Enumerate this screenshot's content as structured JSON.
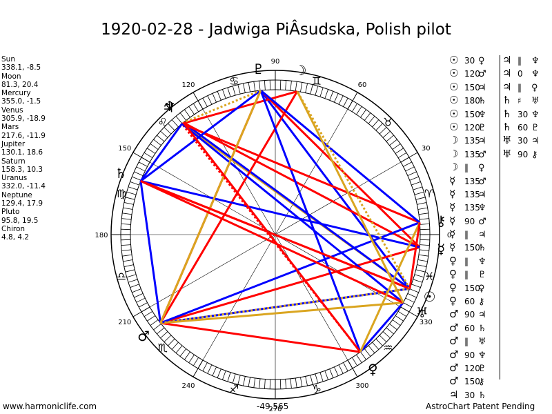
{
  "title": "1920-02-28 - Jadwiga PiÂsudska, Polish pilot",
  "positions": [
    {
      "name": "Sun",
      "value": "338.1, -8.5"
    },
    {
      "name": "Moon",
      "value": "81.3, 20.4"
    },
    {
      "name": "Mercury",
      "value": "355.0, -1.5"
    },
    {
      "name": "Venus",
      "value": "305.9, -18.9"
    },
    {
      "name": "Mars",
      "value": "217.6, -11.9"
    },
    {
      "name": "Jupiter",
      "value": "130.1, 18.6"
    },
    {
      "name": "Saturn",
      "value": "158.3, 10.3"
    },
    {
      "name": "Uranus",
      "value": "332.0, -11.4"
    },
    {
      "name": "Neptune",
      "value": "129.4, 17.9"
    },
    {
      "name": "Pluto",
      "value": "95.8, 19.5"
    },
    {
      "name": "Chiron",
      "value": "4.8, 4.2"
    }
  ],
  "aspects": [
    [
      "☉",
      "30",
      "♀"
    ],
    [
      "☉",
      "120",
      "♂"
    ],
    [
      "☉",
      "150",
      "♃"
    ],
    [
      "☉",
      "180",
      "♄"
    ],
    [
      "☉",
      "150",
      "♆"
    ],
    [
      "☉",
      "120",
      "♇"
    ],
    [
      "☽",
      "135",
      "♃"
    ],
    [
      "☽",
      "135",
      "♂"
    ],
    [
      "☽",
      "‖",
      "♀"
    ],
    [
      "☿",
      "135",
      "♂"
    ],
    [
      "☿",
      "135",
      "♃"
    ],
    [
      "☿",
      "135",
      "♆"
    ],
    [
      "☿",
      "90",
      "♂"
    ],
    [
      "☿",
      "‖",
      "♃"
    ],
    [
      "☿",
      "150",
      "♄"
    ],
    [
      "♀",
      "‖",
      "♆"
    ],
    [
      "♀",
      "‖",
      "♇"
    ],
    [
      "♀",
      "150",
      "♀"
    ],
    [
      "♀",
      "60",
      "⚷"
    ],
    [
      "♂",
      "90",
      "♃"
    ],
    [
      "♂",
      "60",
      "♄"
    ],
    [
      "♂",
      "‖",
      "♅"
    ],
    [
      "♂",
      "90",
      "♆"
    ],
    [
      "♂",
      "120",
      "♇"
    ],
    [
      "♂",
      "150",
      "⚷"
    ],
    [
      "♃",
      "30",
      "♄"
    ],
    [
      "♃",
      "‖",
      "♆"
    ],
    [
      "♃",
      "0",
      "♆"
    ],
    [
      "♃",
      "‖",
      "♀"
    ],
    [
      "♄",
      "♯",
      "♅"
    ],
    [
      "♄",
      "30",
      "♆"
    ],
    [
      "♄",
      "60",
      "♇"
    ],
    [
      "♅",
      "30",
      "♃"
    ],
    [
      "♅",
      "90",
      "⚷"
    ]
  ],
  "footer": {
    "left": "www.harmoniclife.com",
    "middle": "-49,565",
    "right": "AstroChart Patent Pending"
  },
  "chart_data": {
    "type": "wheel",
    "degree_labels": [
      "0",
      "30",
      "60",
      "90",
      "120",
      "150",
      "180",
      "210",
      "240",
      "270",
      "300",
      "330"
    ],
    "planets": [
      {
        "name": "Sun",
        "symbol": "☉",
        "lon": 338.1,
        "color": "#000000"
      },
      {
        "name": "Moon",
        "symbol": "☽",
        "lon": 81.3,
        "color": "#000000"
      },
      {
        "name": "Mercury",
        "symbol": "☿",
        "lon": 355.0,
        "color": "#000000"
      },
      {
        "name": "Venus",
        "symbol": "♀",
        "lon": 305.9,
        "color": "#000000"
      },
      {
        "name": "Mars",
        "symbol": "♂",
        "lon": 217.6,
        "color": "#000000"
      },
      {
        "name": "Jupiter",
        "symbol": "♃",
        "lon": 130.1,
        "color": "#000000"
      },
      {
        "name": "Saturn",
        "symbol": "♄",
        "lon": 158.3,
        "color": "#000000"
      },
      {
        "name": "Uranus",
        "symbol": "♅",
        "lon": 332.0,
        "color": "#000000"
      },
      {
        "name": "Neptune",
        "symbol": "♆",
        "lon": 129.4,
        "color": "#000000"
      },
      {
        "name": "Pluto",
        "symbol": "♇",
        "lon": 95.8,
        "color": "#000000"
      },
      {
        "name": "Chiron",
        "symbol": "⚷",
        "lon": 4.8,
        "color": "#000000"
      }
    ],
    "signs": [
      "♈",
      "♉",
      "♊",
      "♋",
      "♌",
      "♍",
      "♎",
      "♏",
      "♐",
      "♑",
      "♒",
      "♓"
    ],
    "aspect_colors": {
      "hard": "#ff0000",
      "soft": "#0000ff",
      "minor": "#daa520"
    },
    "aspect_lines": [
      {
        "a": 338.1,
        "b": 217.6,
        "color": "#0000ff",
        "style": "solid"
      },
      {
        "a": 338.1,
        "b": 130.1,
        "color": "#daa520",
        "style": "solid"
      },
      {
        "a": 338.1,
        "b": 158.3,
        "color": "#ff0000",
        "style": "solid"
      },
      {
        "a": 338.1,
        "b": 129.4,
        "color": "#0000ff",
        "style": "solid"
      },
      {
        "a": 338.1,
        "b": 95.8,
        "color": "#0000ff",
        "style": "solid"
      },
      {
        "a": 81.3,
        "b": 217.6,
        "color": "#ff0000",
        "style": "solid"
      },
      {
        "a": 81.3,
        "b": 130.1,
        "color": "#ff0000",
        "style": "solid"
      },
      {
        "a": 355.0,
        "b": 217.6,
        "color": "#ff0000",
        "style": "solid"
      },
      {
        "a": 355.0,
        "b": 129.4,
        "color": "#ff0000",
        "style": "solid"
      },
      {
        "a": 355.0,
        "b": 95.8,
        "color": "#ff0000",
        "style": "solid"
      },
      {
        "a": 355.0,
        "b": 158.3,
        "color": "#0000ff",
        "style": "solid"
      },
      {
        "a": 305.9,
        "b": 217.6,
        "color": "#ff0000",
        "style": "solid"
      },
      {
        "a": 305.9,
        "b": 95.8,
        "color": "#0000ff",
        "style": "solid"
      },
      {
        "a": 305.9,
        "b": 130.1,
        "color": "#ff0000",
        "style": "dotted"
      },
      {
        "a": 305.9,
        "b": 332.0,
        "color": "#0000ff",
        "style": "solid"
      },
      {
        "a": 217.6,
        "b": 158.3,
        "color": "#0000ff",
        "style": "solid"
      },
      {
        "a": 217.6,
        "b": 95.8,
        "color": "#ff0000",
        "style": "solid"
      },
      {
        "a": 217.6,
        "b": 332.0,
        "color": "#daa520",
        "style": "solid"
      },
      {
        "a": 217.6,
        "b": 4.8,
        "color": "#0000ff",
        "style": "solid"
      },
      {
        "a": 217.6,
        "b": 338.1,
        "color": "#daa520",
        "style": "dotted"
      },
      {
        "a": 130.1,
        "b": 158.3,
        "color": "#0000ff",
        "style": "solid"
      },
      {
        "a": 130.1,
        "b": 4.8,
        "color": "#ff0000",
        "style": "solid"
      },
      {
        "a": 130.1,
        "b": 332.0,
        "color": "#0000ff",
        "style": "solid"
      },
      {
        "a": 95.8,
        "b": 158.3,
        "color": "#0000ff",
        "style": "solid"
      },
      {
        "a": 95.8,
        "b": 4.8,
        "color": "#0000ff",
        "style": "solid"
      },
      {
        "a": 95.8,
        "b": 217.6,
        "color": "#daa520",
        "style": "solid"
      },
      {
        "a": 95.8,
        "b": 129.4,
        "color": "#daa520",
        "style": "dotted"
      },
      {
        "a": 158.3,
        "b": 332.0,
        "color": "#ff0000",
        "style": "solid"
      },
      {
        "a": 158.3,
        "b": 338.1,
        "color": "#ff0000",
        "style": "solid"
      },
      {
        "a": 129.4,
        "b": 305.9,
        "color": "#ff0000",
        "style": "solid"
      },
      {
        "a": 332.0,
        "b": 81.3,
        "color": "#daa520",
        "style": "solid"
      },
      {
        "a": 338.1,
        "b": 81.3,
        "color": "#daa520",
        "style": "dotted"
      },
      {
        "a": 4.8,
        "b": 305.9,
        "color": "#daa520",
        "style": "solid"
      },
      {
        "a": 4.8,
        "b": 338.1,
        "color": "#ff0000",
        "style": "solid"
      }
    ]
  }
}
